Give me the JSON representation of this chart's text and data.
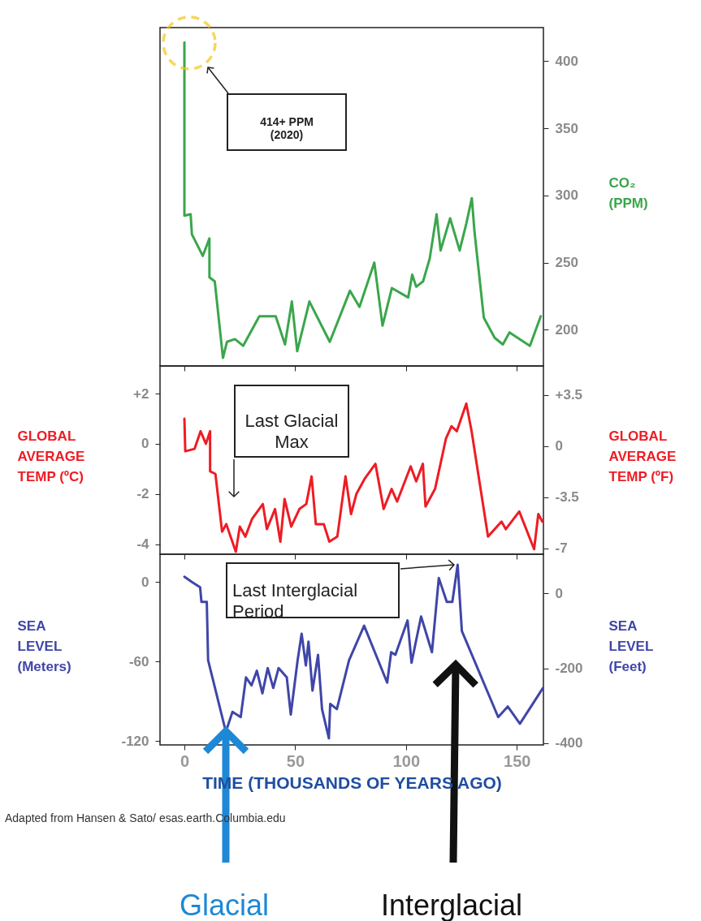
{
  "chart_data": [
    {
      "type": "line",
      "x": [
        0,
        0,
        2.8,
        3.4,
        8.3,
        11.3,
        11.3,
        13.7,
        17.4,
        19.2,
        22.8,
        26.5,
        33.8,
        41.2,
        45.4,
        48.5,
        50.9,
        56.4,
        65.6,
        74.7,
        79,
        85.7,
        89.4,
        93.6,
        101,
        102.8,
        104.6,
        107.7,
        110.7,
        113.8,
        115.6,
        119.9,
        124.2,
        127.2,
        129.7,
        130.9,
        135.1,
        140,
        143.7,
        146.7,
        155.9,
        160.8
      ],
      "series": [
        {
          "color": "#3aa64c",
          "axis": "y2",
          "values": [
            414,
            285,
            286,
            271,
            255,
            268,
            239,
            236,
            179,
            191,
            193,
            188,
            210,
            210,
            189,
            221,
            184,
            221,
            191,
            229,
            217,
            250,
            203,
            231,
            224,
            241,
            232,
            236,
            253,
            286,
            259,
            283,
            259,
            279,
            298,
            273,
            209,
            194,
            189,
            198,
            188,
            210
          ]
        }
      ],
      "xlim": [
        -11,
        162
      ],
      "xticks": [
        0,
        50,
        100,
        150
      ],
      "y2lim": [
        173,
        425
      ],
      "y2ticks": [
        200,
        250,
        300,
        350,
        400
      ],
      "y2label": "CO₂\n(PPM)",
      "tick_labels": "y",
      "annotations": [
        "414+ PPM\n(2020)"
      ]
    },
    {
      "type": "line",
      "x": [
        0,
        0.4,
        4.6,
        7.3,
        9.7,
        11.6,
        11.6,
        14,
        17,
        18.9,
        23.2,
        25,
        27.5,
        30.5,
        35.4,
        37.2,
        40.9,
        43.3,
        45.2,
        48.2,
        51.9,
        55,
        57.4,
        59.3,
        62.9,
        65.4,
        69,
        72.7,
        75.2,
        77.6,
        81.3,
        86.2,
        89.9,
        93.5,
        96,
        102.1,
        104.6,
        107.6,
        108.8,
        113.1,
        118,
        120.5,
        122.9,
        127.2,
        129.6,
        137,
        143.1,
        145,
        151.1,
        157.8,
        159.7,
        161.5
      ],
      "series": [
        {
          "color": "#ee1c24",
          "values": [
            1.0,
            -0.3,
            -0.2,
            0.5,
            0,
            0.5,
            -1.1,
            -1.2,
            -3.5,
            -3.2,
            -4.3,
            -3.3,
            -3.7,
            -3.0,
            -2.4,
            -3.4,
            -2.6,
            -3.9,
            -2.2,
            -3.3,
            -2.6,
            -2.4,
            -1.3,
            -3.2,
            -3.2,
            -3.9,
            -3.7,
            -1.3,
            -2.8,
            -2.0,
            -1.4,
            -0.8,
            -2.6,
            -1.8,
            -2.3,
            -0.9,
            -1.5,
            -0.8,
            -2.5,
            -1.8,
            0.2,
            0.7,
            0.5,
            1.6,
            0.5,
            -3.7,
            -3.1,
            -3.4,
            -2.7,
            -4.2,
            -2.8,
            -3.1
          ]
        }
      ],
      "xlim": [
        -11,
        162
      ],
      "xticks": [
        0,
        50,
        100,
        150
      ],
      "ylim": [
        -4.4,
        3.1
      ],
      "yticks": [
        {
          "value": 2,
          "label": "+2"
        },
        0,
        -2,
        -4
      ],
      "ylabel": "GLOBAL\nAVERAGE\nTEMP (ºC)",
      "y2lim": [
        -7.4,
        5.5
      ],
      "y2ticks": [
        {
          "value": 3.5,
          "label": "+3.5"
        },
        0,
        -3.5,
        -7
      ],
      "y2label": "GLOBAL\nAVERAGE\nTEMP (ºF)",
      "tick_labels": "y",
      "annotations": [
        "Last Glacial\nMax"
      ]
    },
    {
      "type": "line",
      "x": [
        0,
        3.4,
        7.1,
        7.7,
        10.1,
        10.7,
        18.7,
        21.7,
        25.4,
        27.8,
        30.3,
        32.7,
        35.2,
        37.6,
        40.1,
        42.5,
        46.2,
        48,
        51.1,
        52.9,
        54.8,
        56,
        57.8,
        60.3,
        62.1,
        65.2,
        65.8,
        68.8,
        74.3,
        81.1,
        91.5,
        93.3,
        95.2,
        100.7,
        102.5,
        106.8,
        111.7,
        114.8,
        118.4,
        120.9,
        123.3,
        125.2,
        141.6,
        145.9,
        151.4,
        161.8
      ],
      "series": [
        {
          "color": "#3f46a8",
          "values": [
            4,
            0,
            -4,
            -15,
            -15,
            -59,
            -113,
            -98,
            -102,
            -72,
            -78,
            -67,
            -84,
            -65,
            -80,
            -65,
            -72,
            -100,
            -59,
            -39,
            -63,
            -45,
            -82,
            -55,
            -96,
            -118,
            -92,
            -96,
            -59,
            -33,
            -76,
            -53,
            -55,
            -29,
            -61,
            -26,
            -53,
            3,
            -15,
            -15,
            13,
            -37,
            -102,
            -94,
            -107,
            -80
          ]
        }
      ],
      "xlim": [
        -11,
        162
      ],
      "xticks": [
        0,
        50,
        100,
        150
      ],
      "xlabel": "TIME (THOUSANDS OF YEARS AGO)",
      "ylim": [
        -123,
        21
      ],
      "yticks": [
        0,
        -60,
        -120
      ],
      "ylabel": "SEA\nLEVEL\n(Meters)",
      "y2lim": [
        -405,
        105
      ],
      "y2ticks": [
        0,
        -200,
        -400
      ],
      "y2label": "SEA\nLEVEL\n(Feet)",
      "annotations": [
        "Last Interglacial\nPeriod",
        "Glacial",
        "Interglacial",
        "Adapted from Hansen & Sato/ esas.earth.Columbia.edu"
      ]
    }
  ]
}
